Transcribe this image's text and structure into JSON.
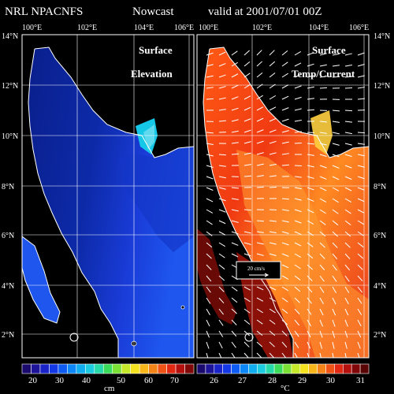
{
  "header": {
    "source": "NRL NPACNFS",
    "product": "Nowcast",
    "valid": "valid at 2001/07/01 00Z"
  },
  "axes": {
    "x_ticks": [
      "100°E",
      "102°E",
      "104°E",
      "106°E"
    ],
    "y_ticks": [
      "14°N",
      "12°N",
      "10°N",
      "8°N",
      "6°N",
      "4°N",
      "2°N"
    ]
  },
  "panels": {
    "left": {
      "label_line1": "Surface",
      "label_line2": "Elevation"
    },
    "right": {
      "label_line1": "Surface",
      "label_line2": "Temp/Current"
    }
  },
  "vector_scale": {
    "label": "20 cm/s"
  },
  "colorbars": {
    "left": {
      "tick_labels": [
        "20",
        "30",
        "40",
        "50",
        "60",
        "70"
      ],
      "unit": "cm",
      "colors": [
        "#1a0a6e",
        "#1e149a",
        "#1b24c8",
        "#1438e6",
        "#0f5cf5",
        "#0d86f7",
        "#12acf0",
        "#1ccbe0",
        "#25d9a8",
        "#3bdc5a",
        "#7be235",
        "#c6e82a",
        "#f4e21e",
        "#f9b61a",
        "#f58418",
        "#ef5416",
        "#e02812",
        "#b3100e",
        "#800808"
      ]
    },
    "right": {
      "tick_labels": [
        "26",
        "27",
        "28",
        "29",
        "30",
        "31"
      ],
      "unit": "°C",
      "colors": [
        "#1a0a6e",
        "#1e149a",
        "#1b24c8",
        "#1438e6",
        "#0f5cf5",
        "#0d86f7",
        "#12acf0",
        "#1ccbe0",
        "#25d9a8",
        "#3bdc5a",
        "#7be235",
        "#c6e82a",
        "#f4e21e",
        "#f9b61a",
        "#f58418",
        "#ef5416",
        "#e02812",
        "#b3100e",
        "#800808",
        "#5a0505"
      ]
    }
  },
  "colors": {
    "land": "#000000",
    "coast": "#ffffff",
    "grid": "#ffffff",
    "elev_deep": "#0a1f8c",
    "elev_mid": "#1a3cd8",
    "elev_shallow": "#1e5cf0",
    "elev_high": "#16c8e8",
    "temp_warm": "#ff7a1e",
    "temp_hot": "#e82812",
    "temp_dark": "#6a0a06"
  }
}
